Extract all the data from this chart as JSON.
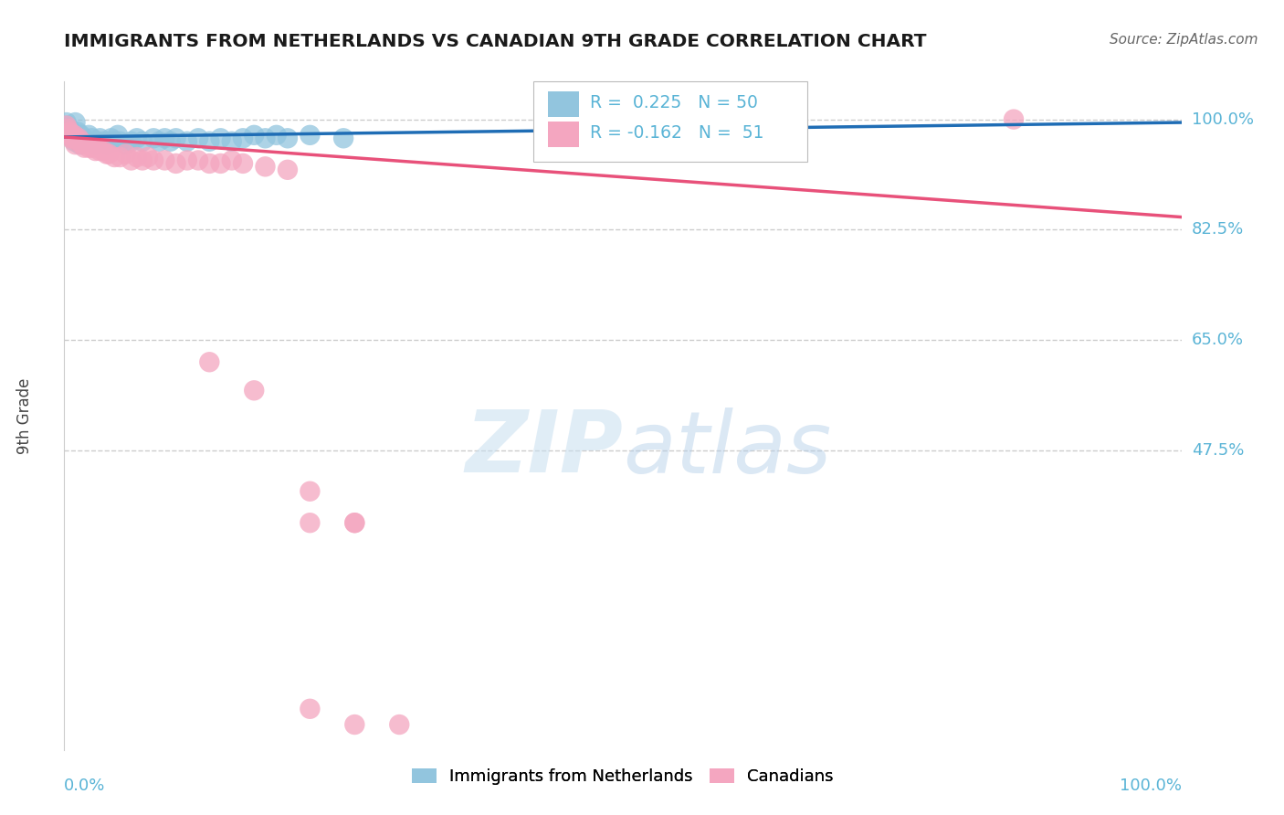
{
  "title": "IMMIGRANTS FROM NETHERLANDS VS CANADIAN 9TH GRADE CORRELATION CHART",
  "source_text": "Source: ZipAtlas.com",
  "xlabel_bottom_left": "0.0%",
  "xlabel_bottom_right": "100.0%",
  "ylabel": "9th Grade",
  "y_tick_labels": [
    "100.0%",
    "82.5%",
    "65.0%",
    "47.5%"
  ],
  "y_tick_values": [
    1.0,
    0.825,
    0.65,
    0.475
  ],
  "x_range": [
    0.0,
    1.0
  ],
  "y_range": [
    0.0,
    1.06
  ],
  "legend_label_blue": "Immigrants from Netherlands",
  "legend_label_pink": "Canadians",
  "legend_R_blue": "R =  0.225   N = 50",
  "legend_R_pink": "R = -0.162   N =  51",
  "color_blue": "#92c5de",
  "color_pink": "#f4a6c0",
  "color_blue_line": "#1f6db5",
  "color_pink_line": "#e8517a",
  "color_axis_labels": "#5ab4d6",
  "color_title": "#1a1a1a",
  "color_source": "#666666",
  "watermark_zip": "ZIP",
  "watermark_atlas": "atlas",
  "grid_color": "#cccccc",
  "grid_style": "--",
  "background_color": "#ffffff",
  "blue_points_x": [
    0.002,
    0.003,
    0.004,
    0.005,
    0.006,
    0.007,
    0.008,
    0.009,
    0.01,
    0.01,
    0.012,
    0.013,
    0.014,
    0.015,
    0.016,
    0.018,
    0.02,
    0.022,
    0.025,
    0.028,
    0.03,
    0.032,
    0.035,
    0.038,
    0.04,
    0.042,
    0.045,
    0.048,
    0.05,
    0.055,
    0.06,
    0.065,
    0.07,
    0.08,
    0.085,
    0.09,
    0.095,
    0.1,
    0.11,
    0.12,
    0.13,
    0.14,
    0.15,
    0.16,
    0.17,
    0.18,
    0.19,
    0.2,
    0.22,
    0.25
  ],
  "blue_points_y": [
    0.995,
    0.99,
    0.985,
    0.985,
    0.98,
    0.975,
    0.97,
    0.965,
    0.995,
    0.975,
    0.98,
    0.97,
    0.96,
    0.975,
    0.965,
    0.97,
    0.965,
    0.975,
    0.97,
    0.96,
    0.965,
    0.97,
    0.965,
    0.96,
    0.965,
    0.97,
    0.965,
    0.975,
    0.965,
    0.96,
    0.965,
    0.97,
    0.965,
    0.97,
    0.965,
    0.97,
    0.965,
    0.97,
    0.965,
    0.97,
    0.965,
    0.97,
    0.965,
    0.97,
    0.975,
    0.97,
    0.975,
    0.97,
    0.975,
    0.97
  ],
  "pink_points_x": [
    0.002,
    0.003,
    0.004,
    0.005,
    0.006,
    0.007,
    0.008,
    0.009,
    0.01,
    0.012,
    0.013,
    0.015,
    0.016,
    0.018,
    0.02,
    0.022,
    0.025,
    0.028,
    0.03,
    0.032,
    0.035,
    0.038,
    0.04,
    0.045,
    0.05,
    0.055,
    0.06,
    0.065,
    0.07,
    0.075,
    0.08,
    0.09,
    0.1,
    0.11,
    0.12,
    0.13,
    0.14,
    0.15,
    0.16,
    0.18,
    0.2,
    0.85,
    0.13,
    0.17,
    0.22,
    0.26,
    0.22,
    0.26,
    0.22,
    0.26,
    0.3
  ],
  "pink_points_y": [
    0.99,
    0.985,
    0.975,
    0.98,
    0.97,
    0.975,
    0.97,
    0.975,
    0.96,
    0.965,
    0.97,
    0.965,
    0.96,
    0.955,
    0.96,
    0.955,
    0.955,
    0.95,
    0.955,
    0.95,
    0.95,
    0.945,
    0.945,
    0.94,
    0.94,
    0.945,
    0.935,
    0.94,
    0.935,
    0.94,
    0.935,
    0.935,
    0.93,
    0.935,
    0.935,
    0.93,
    0.93,
    0.935,
    0.93,
    0.925,
    0.92,
    1.0,
    0.615,
    0.57,
    0.41,
    0.36,
    0.36,
    0.36,
    0.065,
    0.04,
    0.04
  ],
  "blue_trend_x": [
    0.0,
    1.0
  ],
  "blue_trend_y": [
    0.972,
    0.995
  ],
  "pink_trend_x": [
    0.0,
    1.0
  ],
  "pink_trend_y": [
    0.972,
    0.845
  ]
}
